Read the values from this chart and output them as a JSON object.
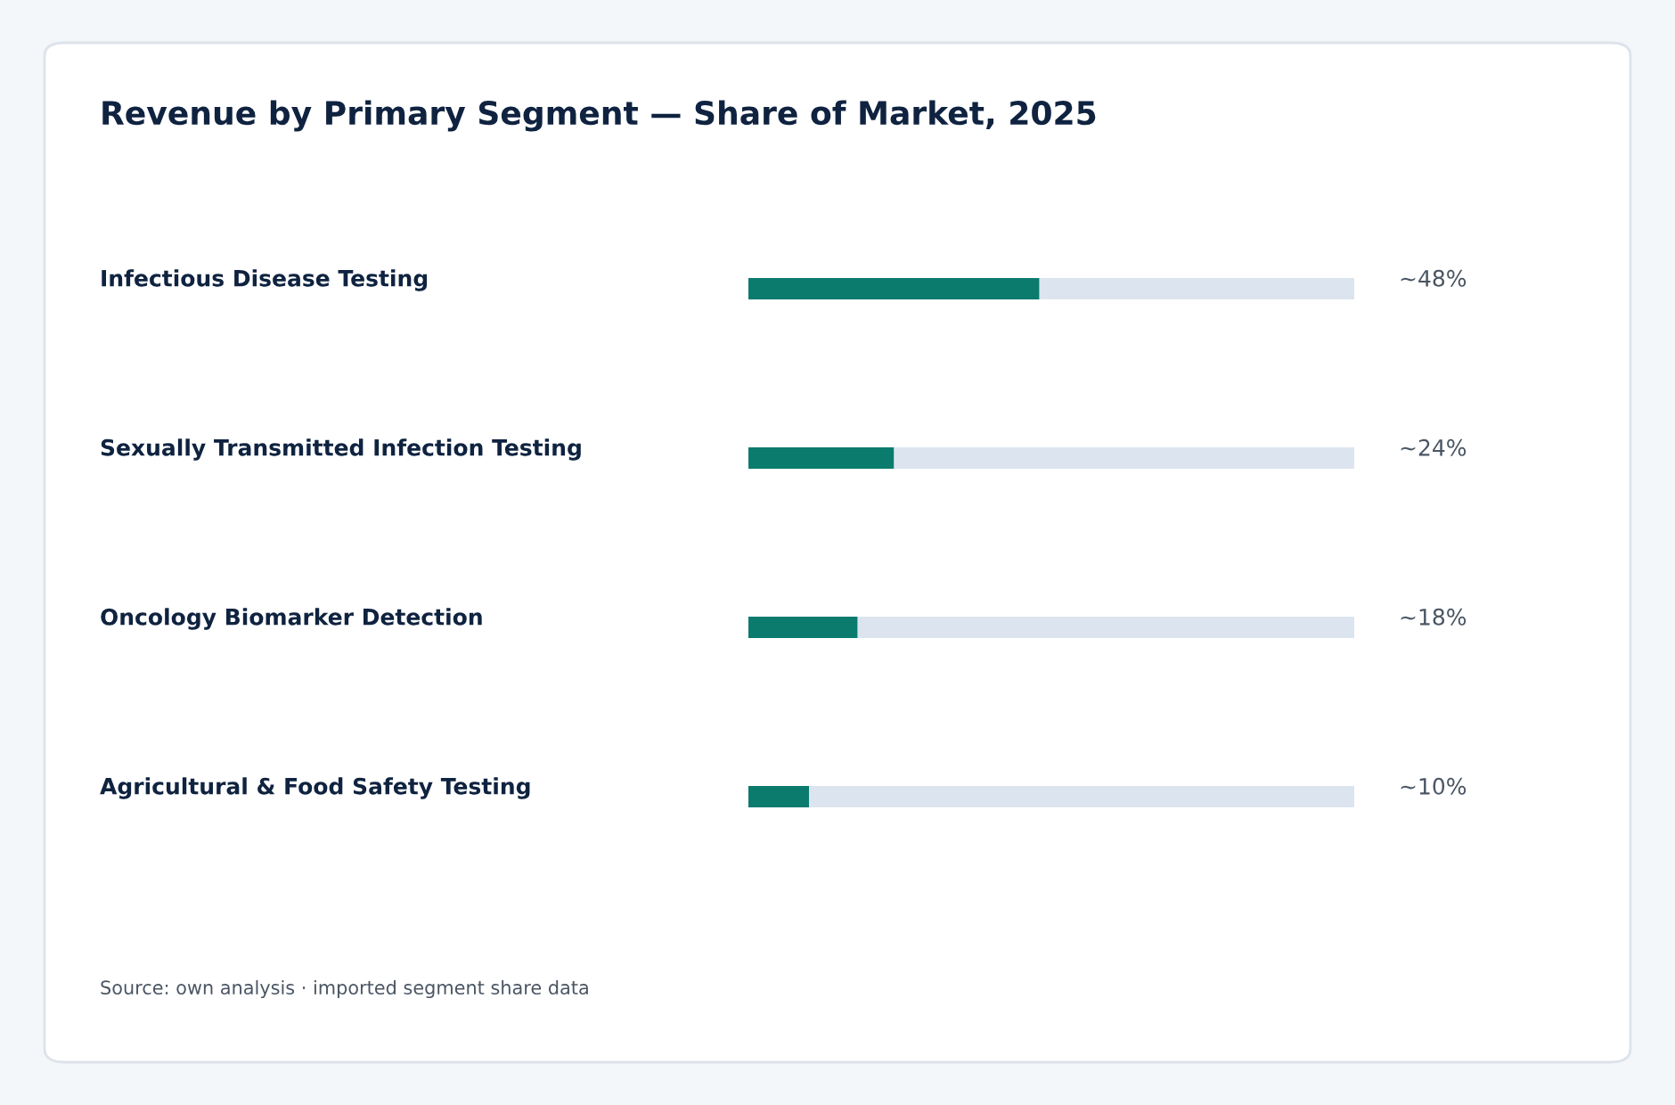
{
  "chart_data": {
    "type": "bar",
    "orientation": "horizontal",
    "title": "Revenue by Primary Segment — Share of Market, 2025",
    "categories": [
      "Infectious Disease Testing",
      "Sexually Transmitted Infection Testing",
      "Oncology Biomarker Detection",
      "Agricultural & Food Safety Testing"
    ],
    "values": [
      48,
      24,
      18,
      10
    ],
    "color": "#0b7b6e",
    "value_labels": [
      "~48%",
      "~24%",
      "~18%",
      "~10%"
    ],
    "xlim": [
      0,
      100
    ],
    "tick_labels": false,
    "annotations": [
      "Source: own analysis · imported segment share data"
    ]
  }
}
